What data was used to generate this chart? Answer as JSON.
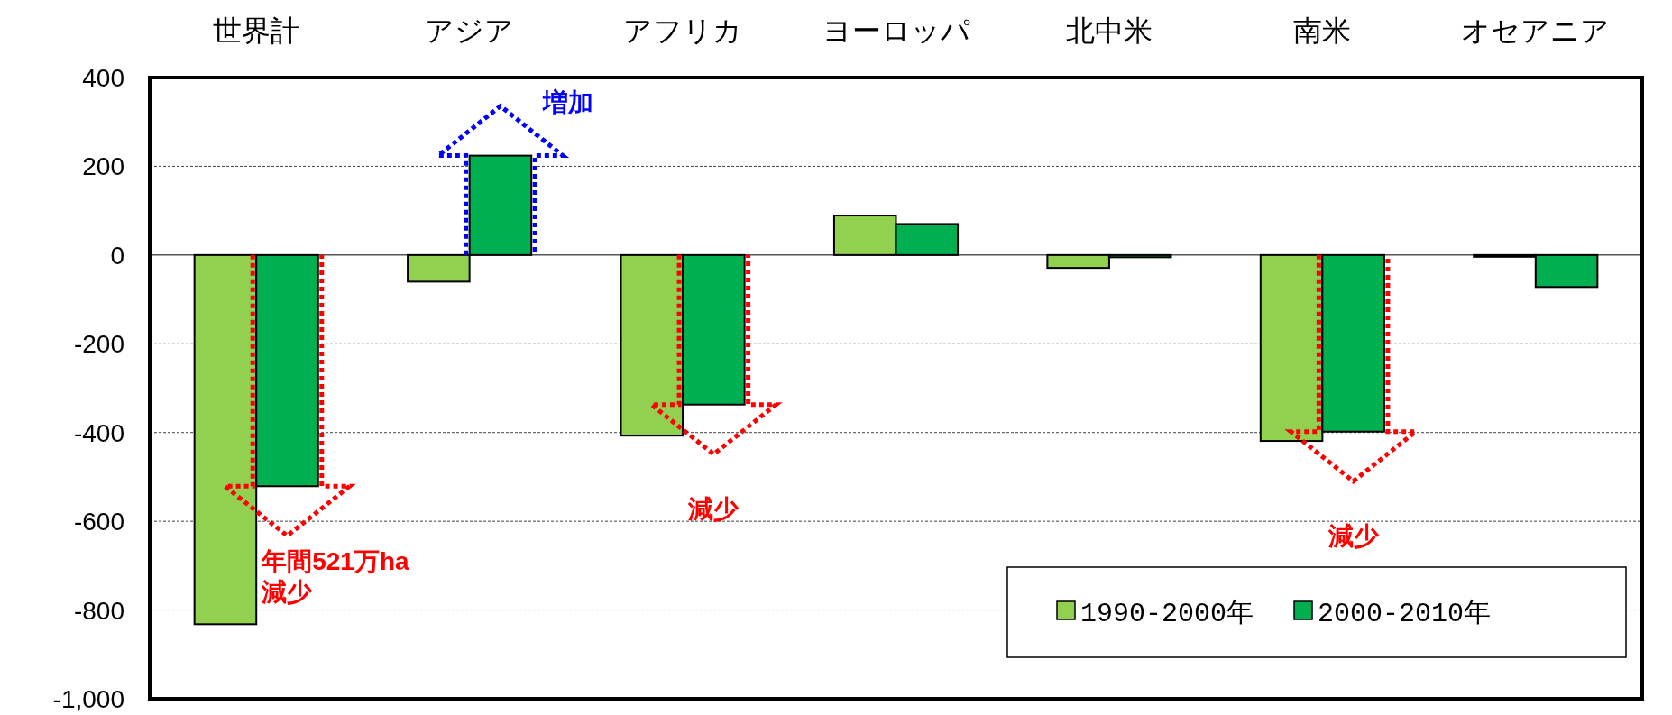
{
  "chart_data": {
    "type": "bar",
    "categories": [
      "世界計",
      "アジア",
      "アフリカ",
      "ヨーロッパ",
      "北中米",
      "南米",
      "オセアニア"
    ],
    "series": [
      {
        "name": "1990-2000年",
        "color": "#92d050",
        "values": [
          -832,
          -60,
          -407,
          89,
          -29,
          -419,
          -4
        ]
      },
      {
        "name": "2000-2010年",
        "color": "#00b050",
        "values": [
          -521,
          224,
          -337,
          70,
          -5,
          -398,
          -72
        ]
      }
    ],
    "ylim": [
      -1000,
      400
    ],
    "yticks": [
      {
        "value": -1000,
        "label": "-1,000"
      },
      -800,
      -600,
      -400,
      -200,
      0,
      200,
      400
    ],
    "grid": "y",
    "legend": "bottom right",
    "annotations": [
      "年間521万ha\n減少",
      "増加",
      "減少",
      "減少"
    ]
  }
}
